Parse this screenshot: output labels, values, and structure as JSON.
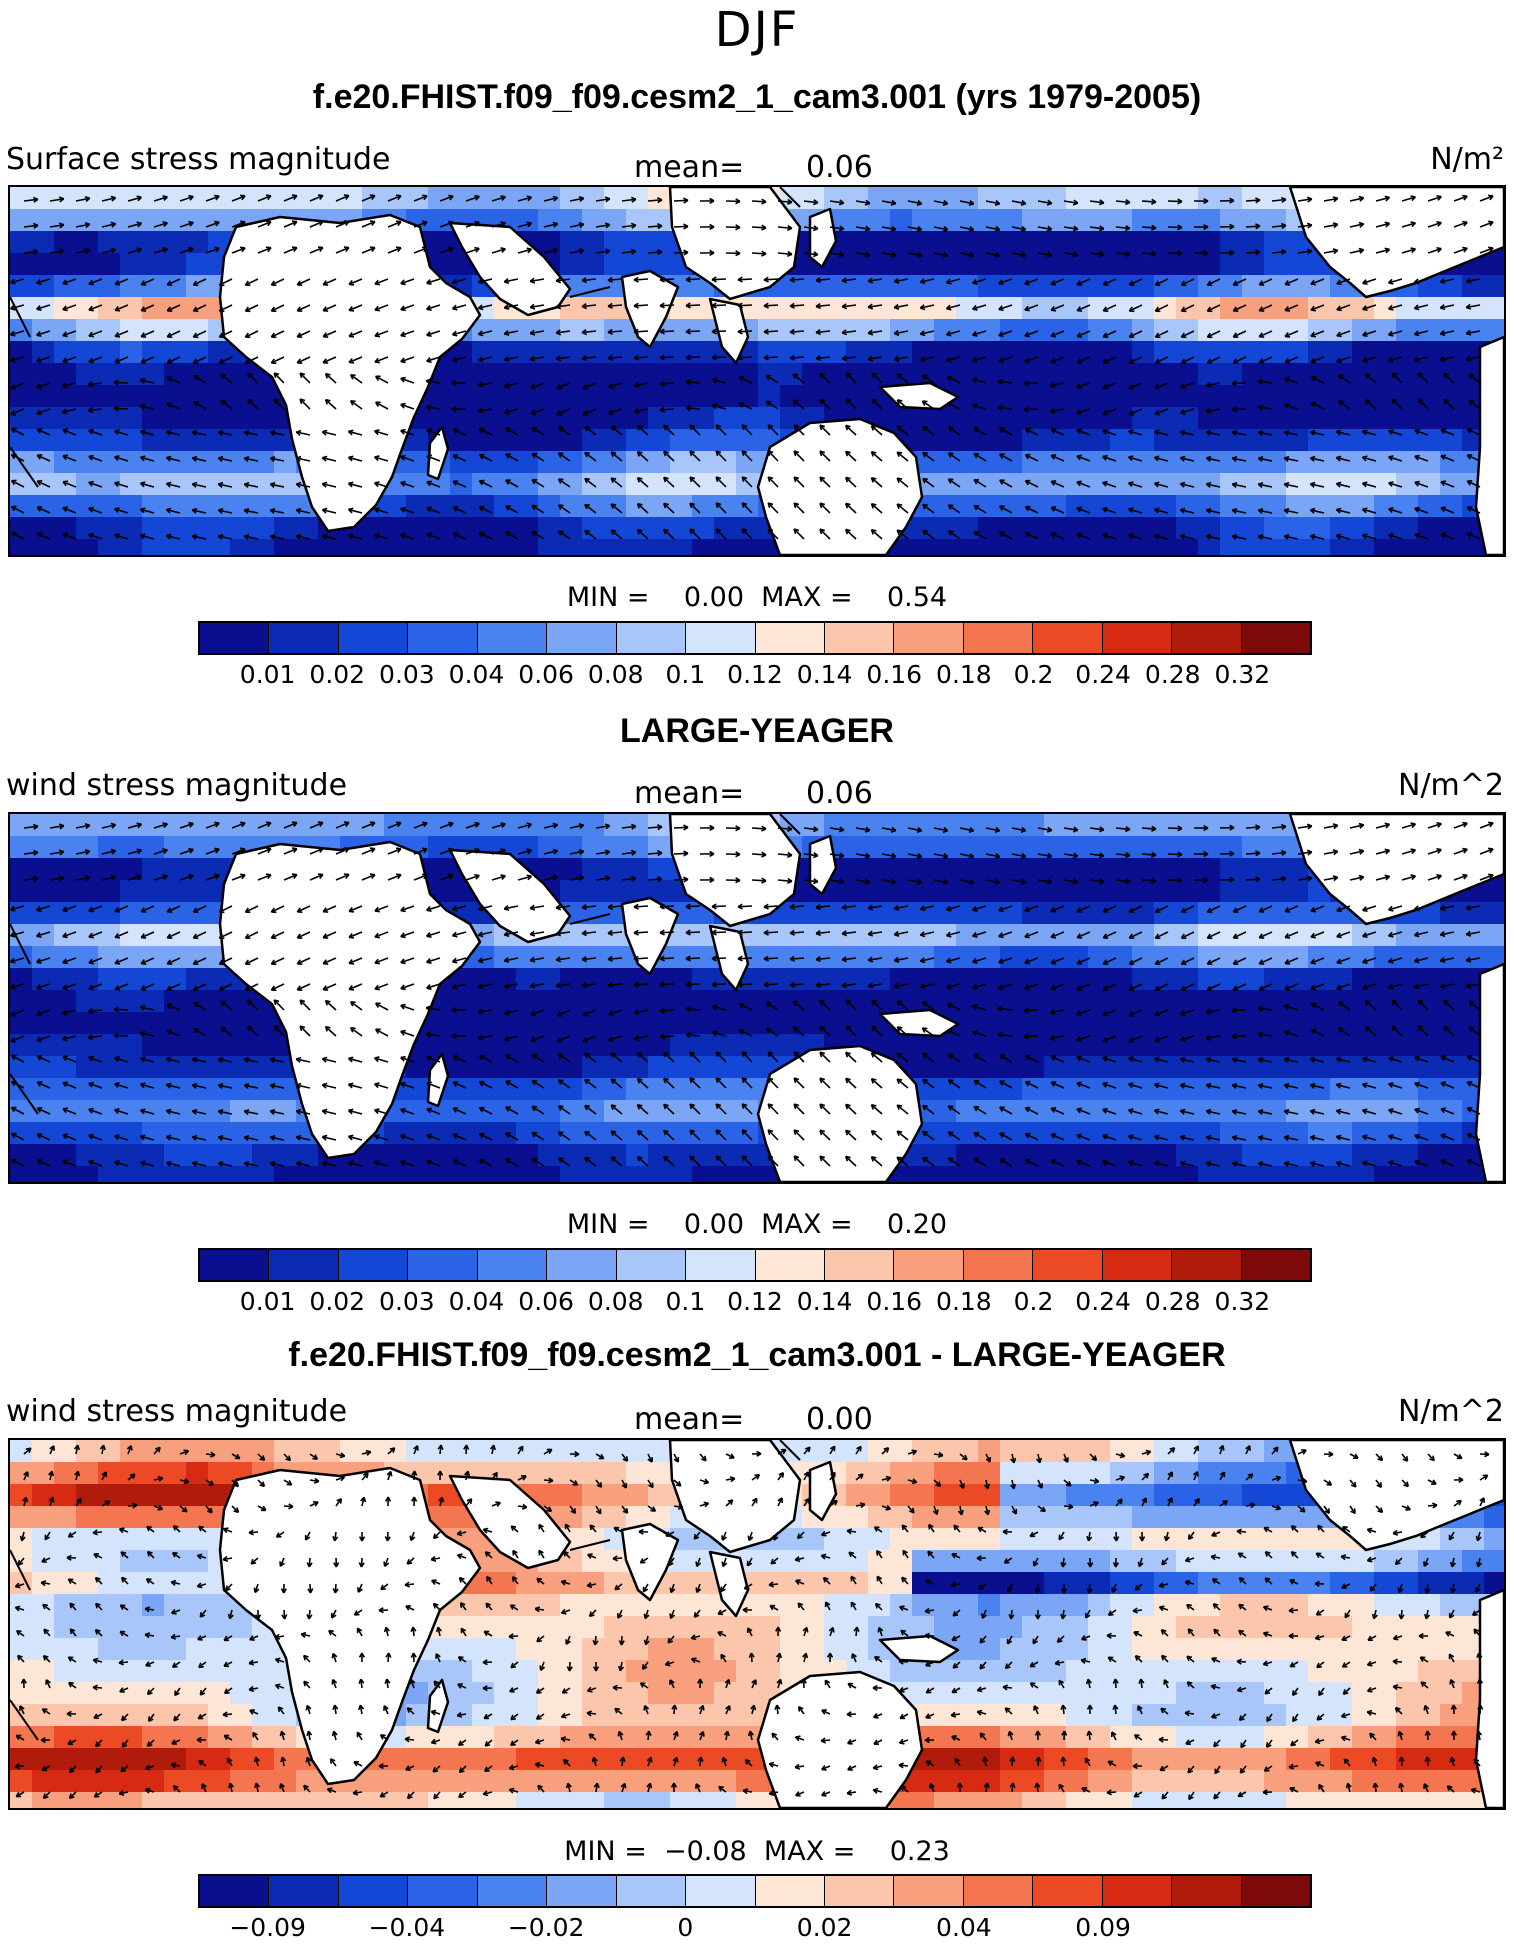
{
  "figure": {
    "season": "DJF"
  },
  "colorbar": {
    "colors": [
      "#0a0f8f",
      "#0b2bb4",
      "#1447d6",
      "#2b63e6",
      "#4a82ef",
      "#7aa6f5",
      "#a9c6fa",
      "#d4e4fc",
      "#fde6d6",
      "#fbc6ac",
      "#f8a07e",
      "#f47650",
      "#ec4a25",
      "#d62a13",
      "#b01b0c",
      "#7d0a08"
    ]
  },
  "panels": [
    {
      "title": "f.e20.FHIST.f09_f09.cesm2_1_cam3.001 (yrs 1979-2005)",
      "left_label": "Surface stress magnitude",
      "mean_label": "mean=",
      "mean_value": "0.06",
      "units": "N/m²",
      "stats": "MIN =    0.00  MAX =    0.54",
      "ticks": [
        "0.01",
        "0.02",
        "0.03",
        "0.04",
        "0.06",
        "0.08",
        "0.1",
        "0.12",
        "0.14",
        "0.16",
        "0.18",
        "0.2",
        "0.24",
        "0.28",
        "0.32"
      ],
      "style": "abs"
    },
    {
      "title": "LARGE-YEAGER",
      "left_label": "wind stress magnitude",
      "mean_label": "mean=",
      "mean_value": "0.06",
      "units": "N/m^2",
      "stats": "MIN =    0.00  MAX =    0.20",
      "ticks": [
        "0.01",
        "0.02",
        "0.03",
        "0.04",
        "0.06",
        "0.08",
        "0.1",
        "0.12",
        "0.14",
        "0.16",
        "0.18",
        "0.2",
        "0.24",
        "0.28",
        "0.32"
      ],
      "style": "obs"
    },
    {
      "title": "f.e20.FHIST.f09_f09.cesm2_1_cam3.001 - LARGE-YEAGER",
      "left_label": "wind stress magnitude",
      "mean_label": "mean=",
      "mean_value": "0.00",
      "units": "N/m^2",
      "stats": "MIN =  −0.08  MAX =    0.23",
      "ticks": [
        "−0.09",
        "",
        "−0.04",
        "",
        "−0.02",
        "",
        "0",
        "",
        "0.02",
        "",
        "0.04",
        "",
        "0.09",
        ""
      ],
      "style": "diff"
    }
  ]
}
